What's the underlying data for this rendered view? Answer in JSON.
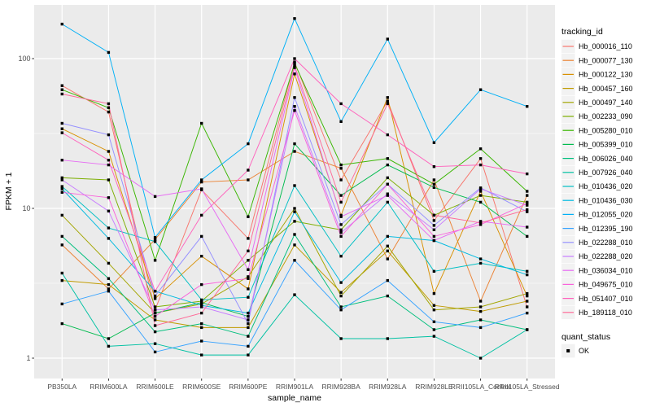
{
  "figure": {
    "panel_bg": "#EBEBEB",
    "grid_color": "#FFFFFF",
    "marker_color": "#000000",
    "tick_text_color": "#4D4D4D",
    "legend_key_bg": "#F2F2F2",
    "y_axis_title": "FPKM + 1",
    "x_axis_title": "sample_name",
    "legend_title": "tracking_id",
    "quant_legend_title": "quant_status",
    "quant_legend_item": "OK"
  },
  "chart_data": {
    "type": "line",
    "title": "",
    "xlabel": "sample_name",
    "ylabel": "FPKM + 1",
    "y_scale": "log10",
    "ylim": [
      1,
      230
    ],
    "y_ticks": [
      1,
      10,
      100
    ],
    "y_minor_ticks": [
      3.1623,
      31.623
    ],
    "grid": true,
    "legend_position": "right",
    "legend_title": "tracking_id",
    "point_marker": "black square (quant_status = OK)",
    "quant_status": {
      "title": "quant_status",
      "values": [
        "OK"
      ]
    },
    "categories": [
      "PB350LA",
      "RRIM600LA",
      "RRIM600LE",
      "RRIM600SE",
      "RRIM600PE",
      "RRIM901LA",
      "RRIM928BA",
      "RRIM928LA",
      "RRIM928LE",
      "RRII105LA_Control",
      "RRII105LA_Stressed"
    ],
    "series": [
      {
        "name": "Hb_000016_110",
        "color": "#F8766D",
        "values": [
          66,
          44,
          2.1,
          13.3,
          6.3,
          95,
          15.5,
          52,
          8.3,
          21.5,
          2.2
        ]
      },
      {
        "name": "Hb_000077_130",
        "color": "#EB8335",
        "values": [
          5.7,
          2.9,
          6.2,
          15.0,
          15.5,
          24,
          18.5,
          4.6,
          15.5,
          2.4,
          12.2
        ]
      },
      {
        "name": "Hb_000122_130",
        "color": "#D89000",
        "values": [
          34,
          24,
          2.5,
          4.8,
          2.9,
          79,
          9.0,
          55,
          2.7,
          13.0,
          2.6
        ]
      },
      {
        "name": "Hb_000457_160",
        "color": "#C09B00",
        "values": [
          3.3,
          3.1,
          1.8,
          1.6,
          1.6,
          5.7,
          2.75,
          5.2,
          2.25,
          2.05,
          2.4
        ]
      },
      {
        "name": "Hb_000497_140",
        "color": "#A3A500",
        "values": [
          9.0,
          4.3,
          2.0,
          2.3,
          3.5,
          10.0,
          2.6,
          5.6,
          2.1,
          2.2,
          2.7
        ]
      },
      {
        "name": "Hb_002233_090",
        "color": "#7CAE00",
        "values": [
          16,
          15.5,
          2.2,
          2.4,
          4.5,
          8.2,
          7.2,
          16,
          9.0,
          12.2,
          11
        ]
      },
      {
        "name": "Hb_005280_010",
        "color": "#39B600",
        "values": [
          62,
          47,
          4.5,
          37,
          8.8,
          93,
          19.5,
          21.5,
          14.5,
          25,
          13
        ]
      },
      {
        "name": "Hb_005399_010",
        "color": "#00BB4E",
        "values": [
          1.7,
          1.35,
          2.0,
          2.35,
          1.9,
          27,
          12.2,
          19.5,
          13.8,
          11,
          6.5
        ]
      },
      {
        "name": "Hb_006026_040",
        "color": "#00BF7D",
        "values": [
          6.5,
          3.4,
          1.5,
          1.7,
          1.4,
          6.7,
          2.2,
          2.6,
          1.55,
          1.8,
          1.55
        ]
      },
      {
        "name": "Hb_007926_040",
        "color": "#00C1A3",
        "values": [
          3.7,
          1.2,
          1.25,
          1.05,
          1.05,
          2.65,
          1.35,
          1.35,
          1.4,
          1.0,
          1.55
        ]
      },
      {
        "name": "Hb_010436_020",
        "color": "#00BFC4",
        "values": [
          14,
          7.4,
          6.0,
          2.45,
          2.55,
          14.2,
          4.8,
          11,
          3.8,
          4.3,
          3.8
        ]
      },
      {
        "name": "Hb_010436_030",
        "color": "#00BAE0",
        "values": [
          13.5,
          6.3,
          2.8,
          2.25,
          2.0,
          9.5,
          3.2,
          6.5,
          6.1,
          4.6,
          3.6
        ]
      },
      {
        "name": "Hb_012055_020",
        "color": "#00B0F6",
        "values": [
          170,
          110,
          6.4,
          15.5,
          27,
          185,
          38,
          135,
          27.5,
          62,
          48
        ]
      },
      {
        "name": "Hb_012395_190",
        "color": "#35A2FF",
        "values": [
          2.3,
          2.8,
          1.1,
          1.3,
          1.2,
          4.5,
          2.1,
          3.3,
          1.75,
          1.6,
          2.0
        ]
      },
      {
        "name": "Hb_022288_010",
        "color": "#9590FF",
        "values": [
          37,
          31,
          2.6,
          6.5,
          1.7,
          55,
          7.8,
          14.5,
          7.7,
          13.7,
          9.5
        ]
      },
      {
        "name": "Hb_022288_020",
        "color": "#C77CFF",
        "values": [
          15.5,
          9.6,
          2.1,
          2.2,
          1.8,
          48,
          6.9,
          12.5,
          7.2,
          13.5,
          10.5
        ]
      },
      {
        "name": "Hb_036034_010",
        "color": "#E76BF3",
        "values": [
          21,
          19.5,
          12,
          13.5,
          3.9,
          87,
          8.8,
          12.2,
          6.1,
          8.2,
          7.5
        ]
      },
      {
        "name": "Hb_049675_010",
        "color": "#FA62DB",
        "values": [
          12.8,
          11.8,
          1.9,
          3.1,
          3.4,
          45,
          6.5,
          14.5,
          6.5,
          7.8,
          10.8
        ]
      },
      {
        "name": "Hb_051407_010",
        "color": "#FF62BC",
        "values": [
          32,
          21,
          2.8,
          9.0,
          18,
          100,
          50,
          31,
          19,
          19.5,
          17
        ]
      },
      {
        "name": "Hb_189118_010",
        "color": "#FF6A98",
        "values": [
          58,
          50,
          1.65,
          2.0,
          5.2,
          90,
          11,
          50,
          9.0,
          8.0,
          9.8
        ]
      }
    ]
  }
}
